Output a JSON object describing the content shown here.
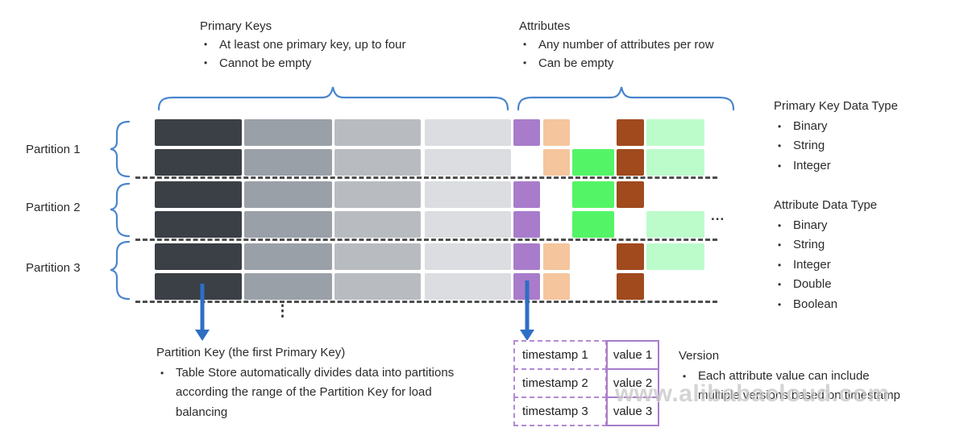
{
  "colors": {
    "charcoal": "#3b4046",
    "gray2": "#9aa0a8",
    "gray3": "#b8bcc1",
    "gray4": "#dbdde0",
    "purple": "#a87ccb",
    "peach": "#f5c59d",
    "green": "#53f566",
    "brown": "#a04a1e",
    "mint": "#bcfccb",
    "blue_brace": "#4a85cc",
    "blue_arrow": "#2e6ec5",
    "dash": "#4d4d4d",
    "table_purple": "#a87ccb",
    "table_purple_dash": "#b48ad2"
  },
  "notes": {
    "primary_keys": {
      "title": "Primary Keys",
      "bullets": [
        "At least one primary key, up to four",
        "Cannot be empty"
      ]
    },
    "attributes": {
      "title": "Attributes",
      "bullets": [
        "Any number of attributes per row",
        "Can be empty"
      ]
    },
    "primary_key_data_type": {
      "title": "Primary Key Data Type",
      "bullets": [
        "Binary",
        "String",
        "Integer"
      ]
    },
    "attribute_data_type": {
      "title": "Attribute Data Type",
      "bullets": [
        "Binary",
        "String",
        "Integer",
        "Double",
        "Boolean"
      ]
    },
    "partition_key": {
      "title": "Partition Key (the first Primary Key)",
      "bullets": [
        "Table Store automatically divides data into partitions according the range of the Partition Key for load balancing"
      ]
    },
    "version": {
      "title": "Version",
      "bullets": [
        "Each attribute value can include multiple versions based on timestamp"
      ]
    }
  },
  "partitions": [
    "Partition 1",
    "Partition 2",
    "Partition 3"
  ],
  "grid": {
    "pk_columns": [
      "charcoal",
      "gray2",
      "gray3",
      "gray4"
    ],
    "attr_columns": [
      "purple",
      "peach",
      "green",
      "brown",
      "mint"
    ],
    "rows": [
      {
        "pk": [
          1,
          1,
          1,
          1
        ],
        "attrs": [
          1,
          1,
          0,
          1,
          1
        ]
      },
      {
        "pk": [
          1,
          1,
          1,
          1
        ],
        "attrs": [
          0,
          1,
          1,
          1,
          1
        ]
      },
      {
        "pk": [
          1,
          1,
          1,
          1
        ],
        "attrs": [
          1,
          0,
          1,
          1,
          0
        ]
      },
      {
        "pk": [
          1,
          1,
          1,
          1
        ],
        "attrs": [
          1,
          0,
          1,
          0,
          1
        ]
      },
      {
        "pk": [
          1,
          1,
          1,
          1
        ],
        "attrs": [
          1,
          1,
          0,
          1,
          1
        ]
      },
      {
        "pk": [
          1,
          1,
          1,
          1
        ],
        "attrs": [
          1,
          1,
          0,
          1,
          0
        ]
      }
    ]
  },
  "version_table": {
    "rows": [
      {
        "timestamp": "timestamp 1",
        "value": "value 1"
      },
      {
        "timestamp": "timestamp 2",
        "value": "value 2"
      },
      {
        "timestamp": "timestamp 3",
        "value": "value 3"
      }
    ]
  },
  "ellipsis_horizontal": "...",
  "ellipsis_vertical": "⋮",
  "watermark": "www.alibabacloud.com"
}
